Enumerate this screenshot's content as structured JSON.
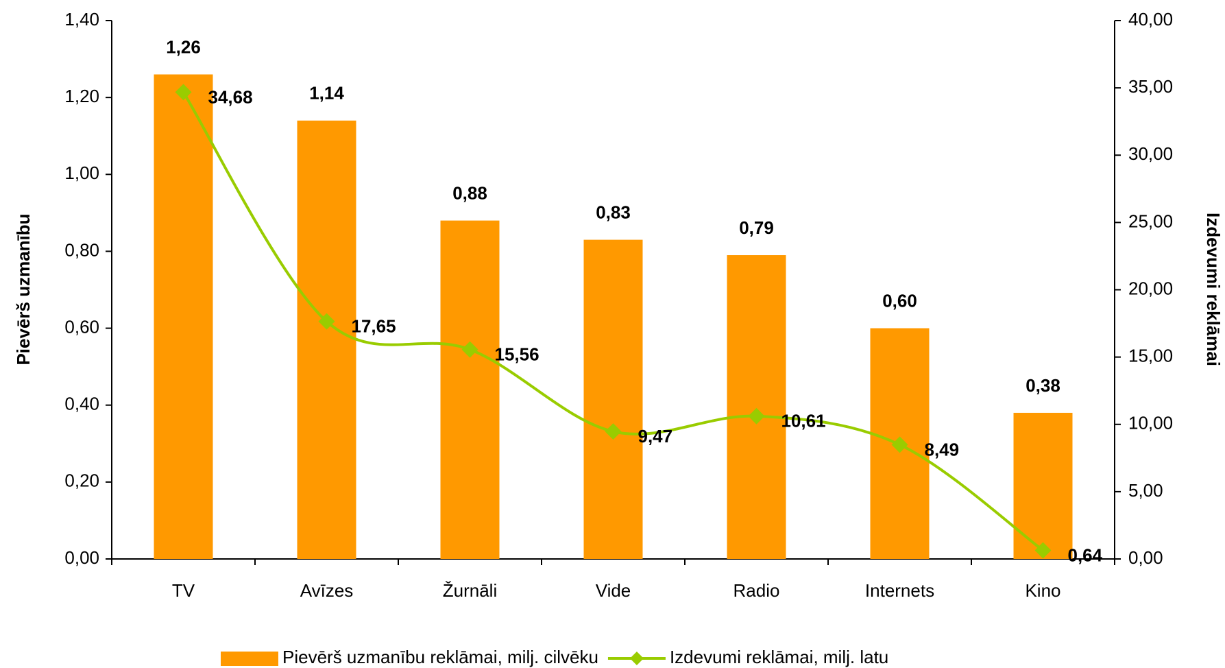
{
  "chart_data": {
    "type": "bar",
    "categories": [
      "TV",
      "Avīzes",
      "Žurnāli",
      "Vide",
      "Radio",
      "Internets",
      "Kino"
    ],
    "ylabel": "Pievērš uzmanību",
    "y2label": "Izdevumi reklāmai",
    "series": [
      {
        "name": "Pievērš uzmanību reklāmai, milj. cilvēku",
        "type": "bar",
        "color": "#ff9900",
        "values": [
          1.26,
          1.14,
          0.88,
          0.83,
          0.79,
          0.6,
          0.38
        ],
        "value_labels": [
          "1,26",
          "1,14",
          "0,88",
          "0,83",
          "0,79",
          "0,60",
          "0,38"
        ]
      },
      {
        "name": "Izdevumi reklāmai, milj. latu",
        "type": "line",
        "axis": "y2",
        "color": "#99cc00",
        "values": [
          34.68,
          17.65,
          15.56,
          9.47,
          10.61,
          8.49,
          0.64
        ],
        "value_labels": [
          "34,68",
          "17,65",
          "15,56",
          "9,47",
          "10,61",
          "8,49",
          "0,64"
        ]
      }
    ],
    "ylim": [
      0,
      1.4
    ],
    "yticks": [
      {
        "value": 0,
        "label": "0,00"
      },
      {
        "value": 0.2,
        "label": "0,20"
      },
      {
        "value": 0.4,
        "label": "0,40"
      },
      {
        "value": 0.6,
        "label": "0,60"
      },
      {
        "value": 0.8,
        "label": "0,80"
      },
      {
        "value": 1.0,
        "label": "1,00"
      },
      {
        "value": 1.2,
        "label": "1,20"
      },
      {
        "value": 1.4,
        "label": "1,40"
      }
    ],
    "y2lim": [
      0,
      40
    ],
    "y2ticks": [
      {
        "value": 0,
        "label": "0,00"
      },
      {
        "value": 5,
        "label": "5,00"
      },
      {
        "value": 10,
        "label": "10,00"
      },
      {
        "value": 15,
        "label": "15,00"
      },
      {
        "value": 20,
        "label": "20,00"
      },
      {
        "value": 25,
        "label": "25,00"
      },
      {
        "value": 30,
        "label": "30,00"
      },
      {
        "value": 35,
        "label": "35,00"
      },
      {
        "value": 40,
        "label": "40,00"
      }
    ],
    "legend": "bottom"
  }
}
